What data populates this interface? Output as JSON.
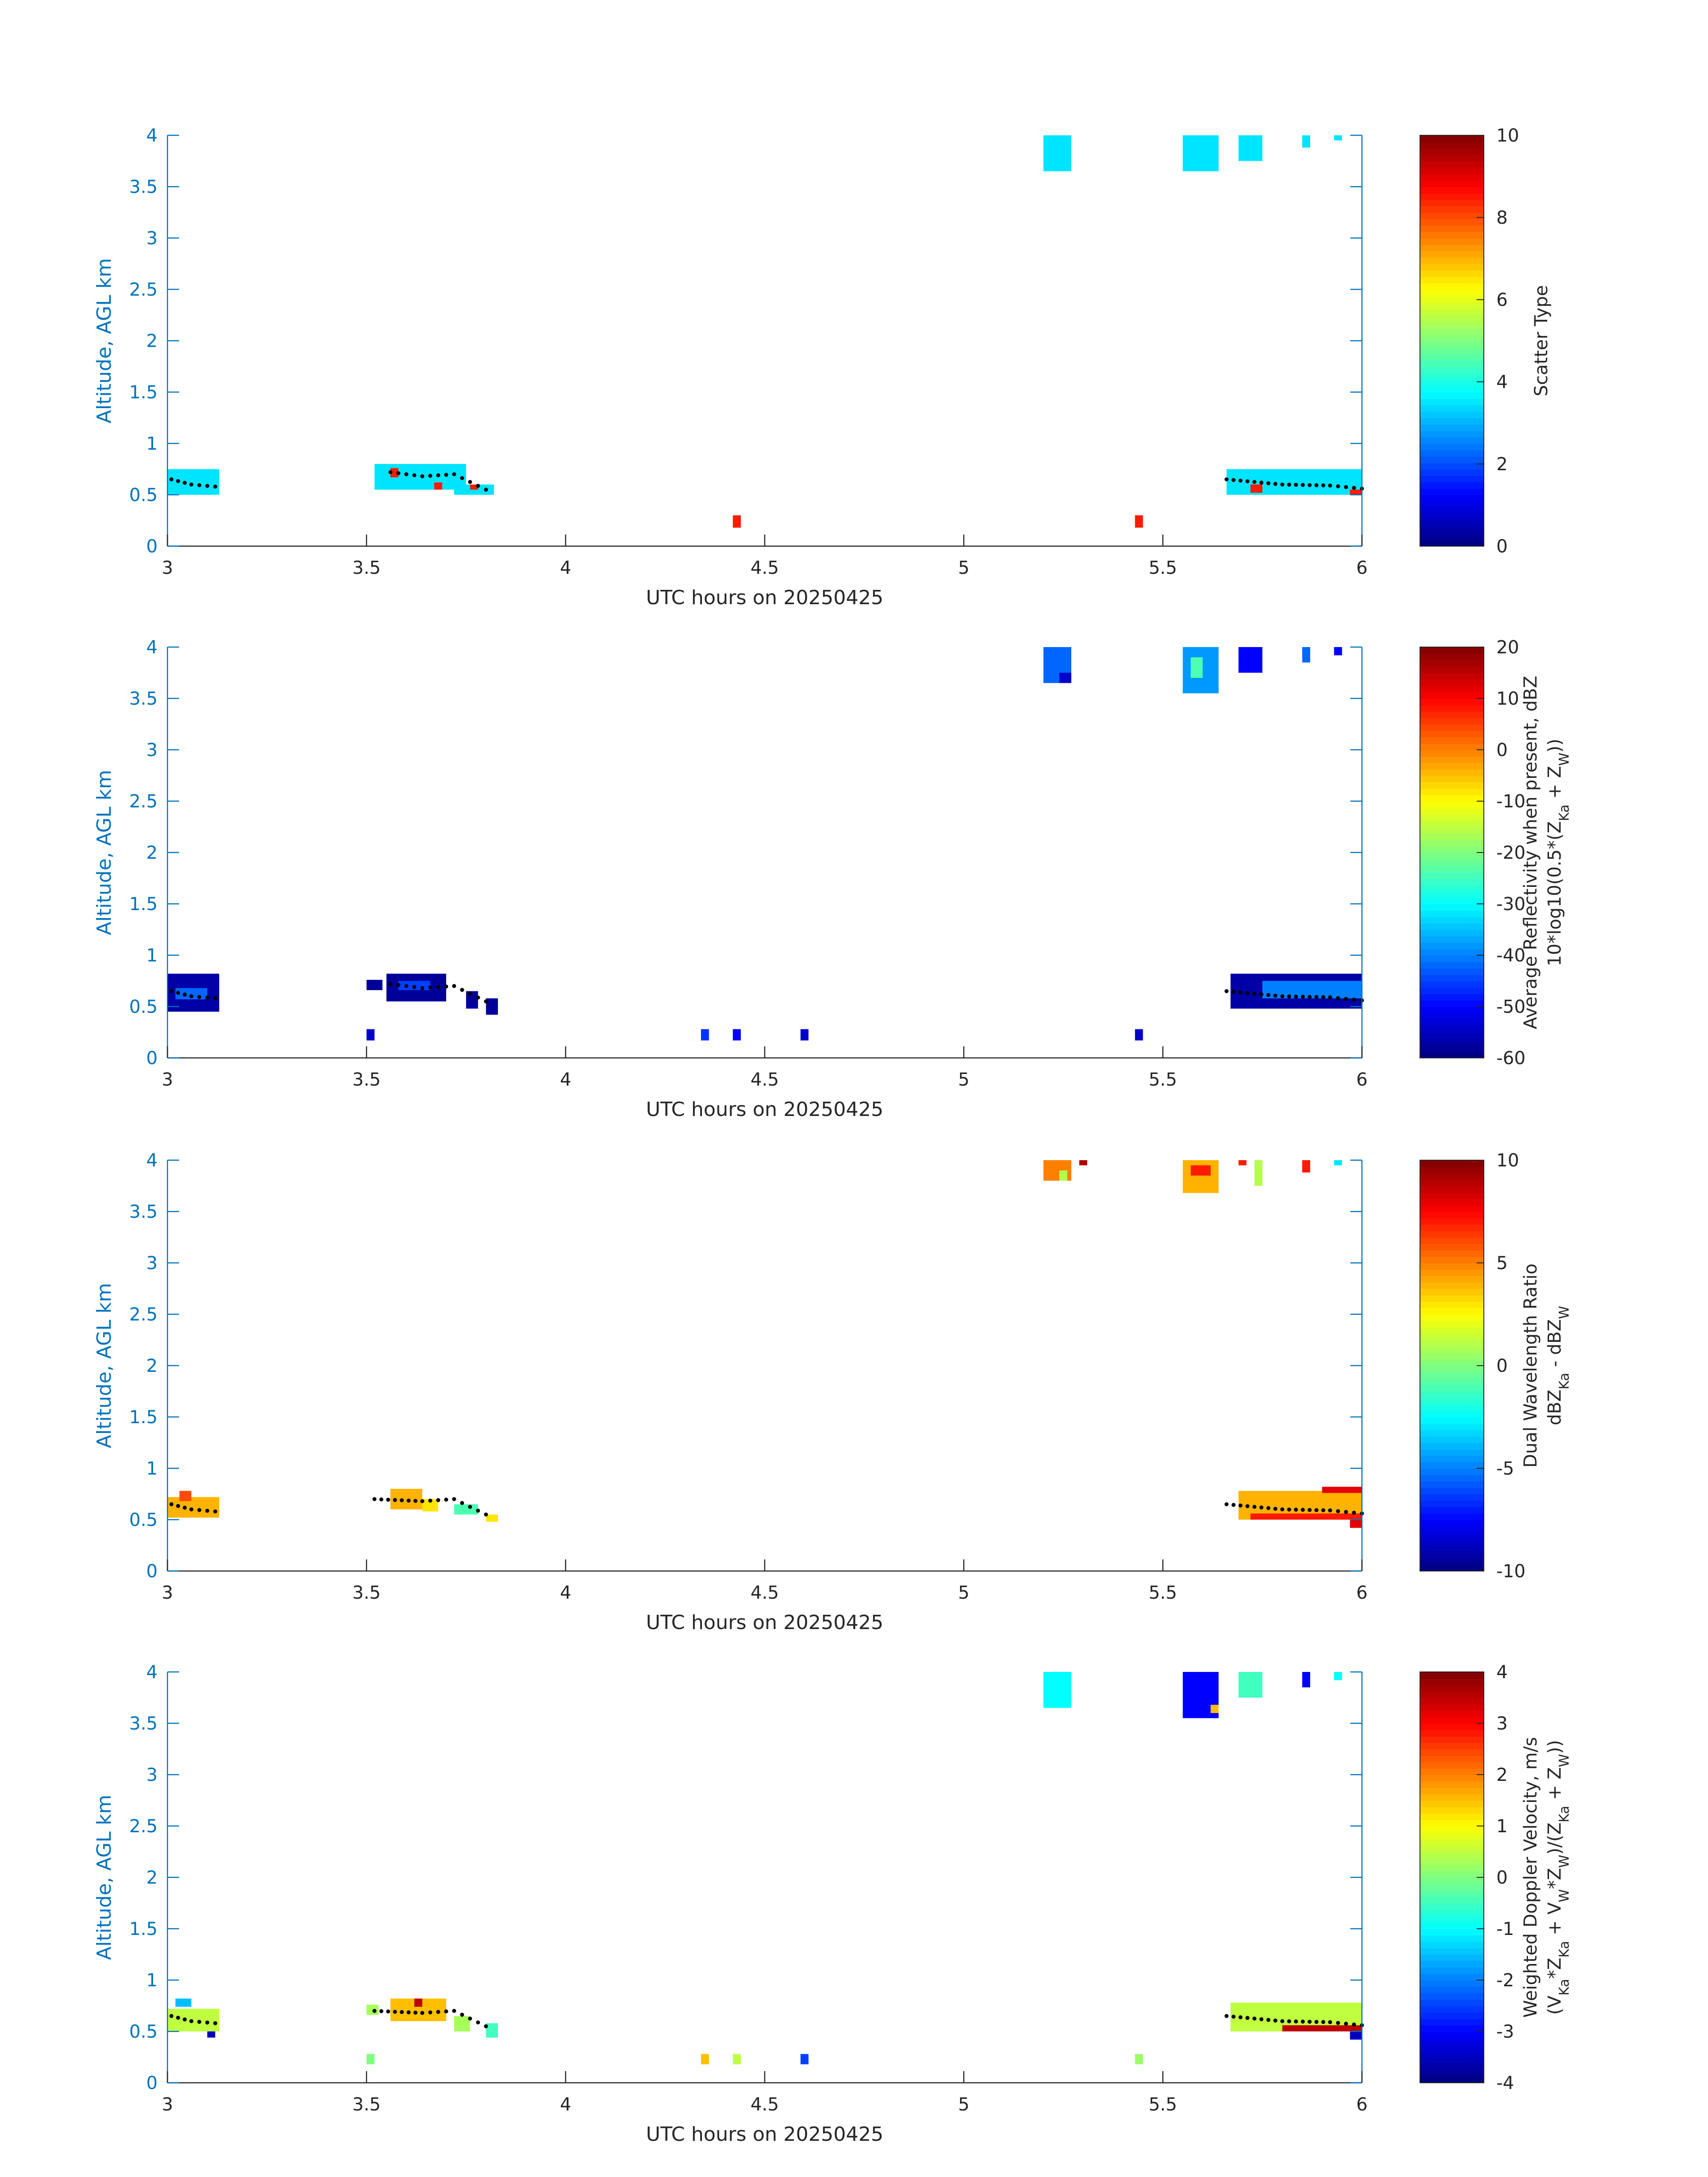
{
  "chart_data": [
    {
      "type": "heatmap",
      "panel": "scatter-type",
      "xlabel": "UTC hours on 20250425",
      "ylabel": "Altitude, AGL km",
      "xlim": [
        3,
        6
      ],
      "ylim": [
        0,
        4
      ],
      "xticks": [
        "3",
        "3.5",
        "4",
        "4.5",
        "5",
        "5.5",
        "6"
      ],
      "yticks": [
        "0",
        "0.5",
        "1",
        "1.5",
        "2",
        "2.5",
        "3",
        "3.5",
        "4"
      ],
      "colorbar": {
        "label_lines": [
          "Scatter Type"
        ],
        "range": [
          0,
          10
        ],
        "ticks": [
          "0",
          "2",
          "4",
          "6",
          "8",
          "10"
        ]
      },
      "cells": [
        {
          "x0": 3.0,
          "x1": 3.13,
          "y0": 0.5,
          "y1": 0.75,
          "value": 3.5
        },
        {
          "x0": 3.52,
          "x1": 3.75,
          "y0": 0.55,
          "y1": 0.8,
          "value": 3.5
        },
        {
          "x0": 3.72,
          "x1": 3.82,
          "y0": 0.5,
          "y1": 0.6,
          "value": 3.5
        },
        {
          "x0": 3.56,
          "x1": 3.58,
          "y0": 0.67,
          "y1": 0.76,
          "value": 8.5
        },
        {
          "x0": 3.67,
          "x1": 3.69,
          "y0": 0.55,
          "y1": 0.62,
          "value": 8.5
        },
        {
          "x0": 3.76,
          "x1": 3.78,
          "y0": 0.55,
          "y1": 0.6,
          "value": 8.5
        },
        {
          "x0": 4.42,
          "x1": 4.44,
          "y0": 0.18,
          "y1": 0.3,
          "value": 8.5
        },
        {
          "x0": 5.43,
          "x1": 5.45,
          "y0": 0.18,
          "y1": 0.3,
          "value": 8.5
        },
        {
          "x0": 5.2,
          "x1": 5.27,
          "y0": 3.65,
          "y1": 4.0,
          "value": 3.5
        },
        {
          "x0": 5.55,
          "x1": 5.64,
          "y0": 3.65,
          "y1": 4.0,
          "value": 3.5
        },
        {
          "x0": 5.69,
          "x1": 5.75,
          "y0": 3.75,
          "y1": 4.0,
          "value": 3.5
        },
        {
          "x0": 5.85,
          "x1": 5.87,
          "y0": 3.88,
          "y1": 4.0,
          "value": 3.5
        },
        {
          "x0": 5.93,
          "x1": 5.95,
          "y0": 3.95,
          "y1": 4.0,
          "value": 3.5
        },
        {
          "x0": 5.66,
          "x1": 6.0,
          "y0": 0.5,
          "y1": 0.75,
          "value": 3.5
        },
        {
          "x0": 5.72,
          "x1": 5.75,
          "y0": 0.52,
          "y1": 0.6,
          "value": 8.5
        },
        {
          "x0": 5.97,
          "x1": 6.0,
          "y0": 0.5,
          "y1": 0.55,
          "value": 8.5
        }
      ],
      "trace": [
        {
          "x": 3.01,
          "y": 0.65
        },
        {
          "x": 3.06,
          "y": 0.6
        },
        {
          "x": 3.12,
          "y": 0.58
        },
        {
          "x": 3.56,
          "y": 0.72
        },
        {
          "x": 3.64,
          "y": 0.68
        },
        {
          "x": 3.72,
          "y": 0.7
        },
        {
          "x": 3.8,
          "y": 0.55
        },
        {
          "x": 5.66,
          "y": 0.65
        },
        {
          "x": 5.8,
          "y": 0.6
        },
        {
          "x": 5.92,
          "y": 0.59
        },
        {
          "x": 6.0,
          "y": 0.56
        }
      ]
    },
    {
      "type": "heatmap",
      "panel": "reflectivity",
      "xlabel": "UTC hours on 20250425",
      "ylabel": "Altitude, AGL km",
      "xlim": [
        3,
        6
      ],
      "ylim": [
        0,
        4
      ],
      "xticks": [
        "3",
        "3.5",
        "4",
        "4.5",
        "5",
        "5.5",
        "6"
      ],
      "yticks": [
        "0",
        "0.5",
        "1",
        "1.5",
        "2",
        "2.5",
        "3",
        "3.5",
        "4"
      ],
      "colorbar": {
        "label_lines": [
          "Average Reflectivity when present, dBZ",
          "10*log10(0.5*(Z",
          "Ka",
          " + Z",
          "W",
          "))"
        ],
        "range": [
          -60,
          20
        ],
        "ticks": [
          "-60",
          "-50",
          "-40",
          "-30",
          "-20",
          "-10",
          "0",
          "10",
          "20"
        ]
      },
      "cells": [
        {
          "x0": 3.0,
          "x1": 3.13,
          "y0": 0.45,
          "y1": 0.82,
          "value": -57
        },
        {
          "x0": 3.02,
          "x1": 3.1,
          "y0": 0.57,
          "y1": 0.68,
          "value": -42
        },
        {
          "x0": 3.5,
          "x1": 3.54,
          "y0": 0.66,
          "y1": 0.76,
          "value": -58
        },
        {
          "x0": 3.55,
          "x1": 3.7,
          "y0": 0.55,
          "y1": 0.82,
          "value": -58
        },
        {
          "x0": 3.58,
          "x1": 3.66,
          "y0": 0.66,
          "y1": 0.75,
          "value": -45
        },
        {
          "x0": 3.75,
          "x1": 3.78,
          "y0": 0.48,
          "y1": 0.65,
          "value": -58
        },
        {
          "x0": 3.8,
          "x1": 3.83,
          "y0": 0.42,
          "y1": 0.58,
          "value": -58
        },
        {
          "x0": 3.5,
          "x1": 3.52,
          "y0": 0.17,
          "y1": 0.28,
          "value": -54
        },
        {
          "x0": 4.34,
          "x1": 4.36,
          "y0": 0.17,
          "y1": 0.28,
          "value": -46
        },
        {
          "x0": 4.42,
          "x1": 4.44,
          "y0": 0.17,
          "y1": 0.28,
          "value": -50
        },
        {
          "x0": 4.59,
          "x1": 4.61,
          "y0": 0.17,
          "y1": 0.28,
          "value": -54
        },
        {
          "x0": 5.43,
          "x1": 5.45,
          "y0": 0.17,
          "y1": 0.28,
          "value": -54
        },
        {
          "x0": 5.2,
          "x1": 5.27,
          "y0": 3.65,
          "y1": 4.0,
          "value": -42
        },
        {
          "x0": 5.24,
          "x1": 5.27,
          "y0": 3.65,
          "y1": 3.75,
          "value": -54
        },
        {
          "x0": 5.55,
          "x1": 5.64,
          "y0": 3.55,
          "y1": 4.0,
          "value": -38
        },
        {
          "x0": 5.57,
          "x1": 5.6,
          "y0": 3.7,
          "y1": 3.9,
          "value": -24
        },
        {
          "x0": 5.69,
          "x1": 5.75,
          "y0": 3.75,
          "y1": 4.0,
          "value": -50
        },
        {
          "x0": 5.85,
          "x1": 5.87,
          "y0": 3.85,
          "y1": 4.0,
          "value": -42
        },
        {
          "x0": 5.93,
          "x1": 5.95,
          "y0": 3.92,
          "y1": 4.0,
          "value": -50
        },
        {
          "x0": 5.67,
          "x1": 6.0,
          "y0": 0.48,
          "y1": 0.82,
          "value": -57
        },
        {
          "x0": 5.75,
          "x1": 6.0,
          "y0": 0.58,
          "y1": 0.75,
          "value": -40
        }
      ],
      "trace": [
        {
          "x": 3.01,
          "y": 0.65
        },
        {
          "x": 3.06,
          "y": 0.6
        },
        {
          "x": 3.12,
          "y": 0.58
        },
        {
          "x": 3.56,
          "y": 0.72
        },
        {
          "x": 3.64,
          "y": 0.68
        },
        {
          "x": 3.72,
          "y": 0.7
        },
        {
          "x": 3.8,
          "y": 0.55
        },
        {
          "x": 5.66,
          "y": 0.65
        },
        {
          "x": 5.8,
          "y": 0.6
        },
        {
          "x": 5.92,
          "y": 0.59
        },
        {
          "x": 6.0,
          "y": 0.56
        }
      ]
    },
    {
      "type": "heatmap",
      "panel": "dual-wavelength-ratio",
      "xlabel": "UTC hours on 20250425",
      "ylabel": "Altitude, AGL km",
      "xlim": [
        3,
        6
      ],
      "ylim": [
        0,
        4
      ],
      "xticks": [
        "3",
        "3.5",
        "4",
        "4.5",
        "5",
        "5.5",
        "6"
      ],
      "yticks": [
        "0",
        "0.5",
        "1",
        "1.5",
        "2",
        "2.5",
        "3",
        "3.5",
        "4"
      ],
      "colorbar": {
        "label_lines": [
          "Dual Wavelength Ratio",
          "dBZ",
          "Ka",
          " - dBZ",
          "W"
        ],
        "range": [
          -10,
          10
        ],
        "ticks": [
          "-10",
          "-5",
          "0",
          "5",
          "10"
        ]
      },
      "cells": [
        {
          "x0": 3.0,
          "x1": 3.13,
          "y0": 0.52,
          "y1": 0.72,
          "value": 4.0
        },
        {
          "x0": 3.03,
          "x1": 3.06,
          "y0": 0.68,
          "y1": 0.78,
          "value": 6.0
        },
        {
          "x0": 3.56,
          "x1": 3.64,
          "y0": 0.6,
          "y1": 0.8,
          "value": 4.0
        },
        {
          "x0": 3.64,
          "x1": 3.68,
          "y0": 0.58,
          "y1": 0.7,
          "value": 3.0
        },
        {
          "x0": 3.72,
          "x1": 3.78,
          "y0": 0.55,
          "y1": 0.65,
          "value": -1.0
        },
        {
          "x0": 3.8,
          "x1": 3.83,
          "y0": 0.48,
          "y1": 0.55,
          "value": 3.0
        },
        {
          "x0": 5.2,
          "x1": 5.27,
          "y0": 3.8,
          "y1": 4.0,
          "value": 5.0
        },
        {
          "x0": 5.24,
          "x1": 5.26,
          "y0": 3.8,
          "y1": 3.9,
          "value": 1.0
        },
        {
          "x0": 5.29,
          "x1": 5.31,
          "y0": 3.95,
          "y1": 4.0,
          "value": 9.0
        },
        {
          "x0": 5.55,
          "x1": 5.64,
          "y0": 3.68,
          "y1": 4.0,
          "value": 4.0
        },
        {
          "x0": 5.57,
          "x1": 5.62,
          "y0": 3.85,
          "y1": 3.95,
          "value": 7.0
        },
        {
          "x0": 5.69,
          "x1": 5.71,
          "y0": 3.95,
          "y1": 4.0,
          "value": 7.0
        },
        {
          "x0": 5.73,
          "x1": 5.75,
          "y0": 3.75,
          "y1": 4.0,
          "value": 1.0
        },
        {
          "x0": 5.85,
          "x1": 5.87,
          "y0": 3.88,
          "y1": 4.0,
          "value": 7.0
        },
        {
          "x0": 5.93,
          "x1": 5.95,
          "y0": 3.95,
          "y1": 4.0,
          "value": -3.0
        },
        {
          "x0": 5.69,
          "x1": 6.0,
          "y0": 0.5,
          "y1": 0.78,
          "value": 4.0
        },
        {
          "x0": 5.72,
          "x1": 6.0,
          "y0": 0.5,
          "y1": 0.56,
          "value": 7.0
        },
        {
          "x0": 5.9,
          "x1": 6.0,
          "y0": 0.76,
          "y1": 0.82,
          "value": 8.0
        },
        {
          "x0": 5.97,
          "x1": 6.0,
          "y0": 0.42,
          "y1": 0.5,
          "value": 8.0
        }
      ],
      "trace": [
        {
          "x": 3.01,
          "y": 0.65
        },
        {
          "x": 3.06,
          "y": 0.6
        },
        {
          "x": 3.12,
          "y": 0.58
        },
        {
          "x": 3.52,
          "y": 0.7
        },
        {
          "x": 3.64,
          "y": 0.68
        },
        {
          "x": 3.72,
          "y": 0.7
        },
        {
          "x": 3.8,
          "y": 0.55
        },
        {
          "x": 5.66,
          "y": 0.65
        },
        {
          "x": 5.8,
          "y": 0.6
        },
        {
          "x": 5.92,
          "y": 0.59
        },
        {
          "x": 6.0,
          "y": 0.56
        }
      ]
    },
    {
      "type": "heatmap",
      "panel": "weighted-doppler-velocity",
      "xlabel": "UTC hours on 20250425",
      "ylabel": "Altitude, AGL km",
      "xlim": [
        3,
        6
      ],
      "ylim": [
        0,
        4
      ],
      "xticks": [
        "3",
        "3.5",
        "4",
        "4.5",
        "5",
        "5.5",
        "6"
      ],
      "yticks": [
        "0",
        "0.5",
        "1",
        "1.5",
        "2",
        "2.5",
        "3",
        "3.5",
        "4"
      ],
      "colorbar": {
        "label_lines": [
          "Weighted Doppler Velocity, m/s",
          "(V",
          "Ka",
          "*Z",
          "Ka",
          " + V",
          "W",
          "*Z",
          "W",
          ")/(Z",
          "Ka",
          " + Z",
          "W",
          "))"
        ],
        "range": [
          -4,
          4
        ],
        "ticks": [
          "-4",
          "-3",
          "-2",
          "-1",
          "0",
          "1",
          "2",
          "3",
          "4"
        ]
      },
      "cells": [
        {
          "x0": 3.0,
          "x1": 3.13,
          "y0": 0.5,
          "y1": 0.72,
          "value": 0.5
        },
        {
          "x0": 3.02,
          "x1": 3.06,
          "y0": 0.74,
          "y1": 0.82,
          "value": -1.5
        },
        {
          "x0": 3.1,
          "x1": 3.12,
          "y0": 0.44,
          "y1": 0.5,
          "value": -3.5
        },
        {
          "x0": 3.5,
          "x1": 3.53,
          "y0": 0.66,
          "y1": 0.76,
          "value": 0.3
        },
        {
          "x0": 3.56,
          "x1": 3.7,
          "y0": 0.6,
          "y1": 0.82,
          "value": 1.5
        },
        {
          "x0": 3.62,
          "x1": 3.64,
          "y0": 0.74,
          "y1": 0.82,
          "value": 3.5
        },
        {
          "x0": 3.72,
          "x1": 3.76,
          "y0": 0.5,
          "y1": 0.65,
          "value": 0.3
        },
        {
          "x0": 3.8,
          "x1": 3.83,
          "y0": 0.44,
          "y1": 0.58,
          "value": -0.5
        },
        {
          "x0": 3.5,
          "x1": 3.52,
          "y0": 0.18,
          "y1": 0.28,
          "value": 0.0
        },
        {
          "x0": 4.34,
          "x1": 4.36,
          "y0": 0.18,
          "y1": 0.28,
          "value": 1.5
        },
        {
          "x0": 4.42,
          "x1": 4.44,
          "y0": 0.18,
          "y1": 0.28,
          "value": 0.5
        },
        {
          "x0": 4.59,
          "x1": 4.61,
          "y0": 0.18,
          "y1": 0.28,
          "value": -2.5
        },
        {
          "x0": 5.43,
          "x1": 5.45,
          "y0": 0.18,
          "y1": 0.28,
          "value": 0.2
        },
        {
          "x0": 5.2,
          "x1": 5.27,
          "y0": 3.65,
          "y1": 4.0,
          "value": -1.0
        },
        {
          "x0": 5.55,
          "x1": 5.64,
          "y0": 3.55,
          "y1": 4.0,
          "value": -3.0
        },
        {
          "x0": 5.62,
          "x1": 5.64,
          "y0": 3.6,
          "y1": 3.68,
          "value": 1.5
        },
        {
          "x0": 5.69,
          "x1": 5.75,
          "y0": 3.75,
          "y1": 4.0,
          "value": -0.5
        },
        {
          "x0": 5.85,
          "x1": 5.87,
          "y0": 3.85,
          "y1": 4.0,
          "value": -3.0
        },
        {
          "x0": 5.93,
          "x1": 5.95,
          "y0": 3.92,
          "y1": 4.0,
          "value": -1.0
        },
        {
          "x0": 5.67,
          "x1": 6.0,
          "y0": 0.5,
          "y1": 0.78,
          "value": 0.5
        },
        {
          "x0": 5.8,
          "x1": 6.0,
          "y0": 0.5,
          "y1": 0.56,
          "value": 3.5
        },
        {
          "x0": 5.97,
          "x1": 6.0,
          "y0": 0.42,
          "y1": 0.5,
          "value": -3.5
        }
      ],
      "trace": [
        {
          "x": 3.01,
          "y": 0.65
        },
        {
          "x": 3.06,
          "y": 0.6
        },
        {
          "x": 3.12,
          "y": 0.58
        },
        {
          "x": 3.52,
          "y": 0.7
        },
        {
          "x": 3.64,
          "y": 0.68
        },
        {
          "x": 3.72,
          "y": 0.7
        },
        {
          "x": 3.8,
          "y": 0.55
        },
        {
          "x": 5.66,
          "y": 0.65
        },
        {
          "x": 5.8,
          "y": 0.6
        },
        {
          "x": 5.92,
          "y": 0.59
        },
        {
          "x": 6.0,
          "y": 0.56
        }
      ]
    }
  ]
}
